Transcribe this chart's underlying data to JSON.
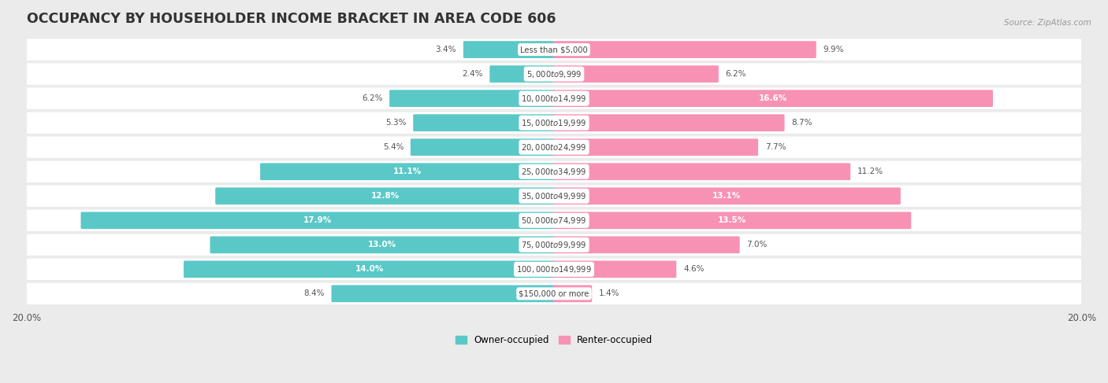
{
  "title": "OCCUPANCY BY HOUSEHOLDER INCOME BRACKET IN AREA CODE 606",
  "source": "Source: ZipAtlas.com",
  "categories": [
    "Less than $5,000",
    "$5,000 to $9,999",
    "$10,000 to $14,999",
    "$15,000 to $19,999",
    "$20,000 to $24,999",
    "$25,000 to $34,999",
    "$35,000 to $49,999",
    "$50,000 to $74,999",
    "$75,000 to $99,999",
    "$100,000 to $149,999",
    "$150,000 or more"
  ],
  "owner_values": [
    3.4,
    2.4,
    6.2,
    5.3,
    5.4,
    11.1,
    12.8,
    17.9,
    13.0,
    14.0,
    8.4
  ],
  "renter_values": [
    9.9,
    6.2,
    16.6,
    8.7,
    7.7,
    11.2,
    13.1,
    13.5,
    7.0,
    4.6,
    1.4
  ],
  "owner_color": "#5BC8C8",
  "renter_color": "#F892B4",
  "axis_limit": 20.0,
  "background_color": "#ebebeb",
  "bar_background": "#ffffff",
  "title_fontsize": 12.5,
  "label_fontsize": 8.5,
  "bar_height": 0.62,
  "legend_owner": "Owner-occupied",
  "legend_renter": "Renter-occupied",
  "owner_inside_threshold": 10.0,
  "renter_inside_threshold": 13.0
}
